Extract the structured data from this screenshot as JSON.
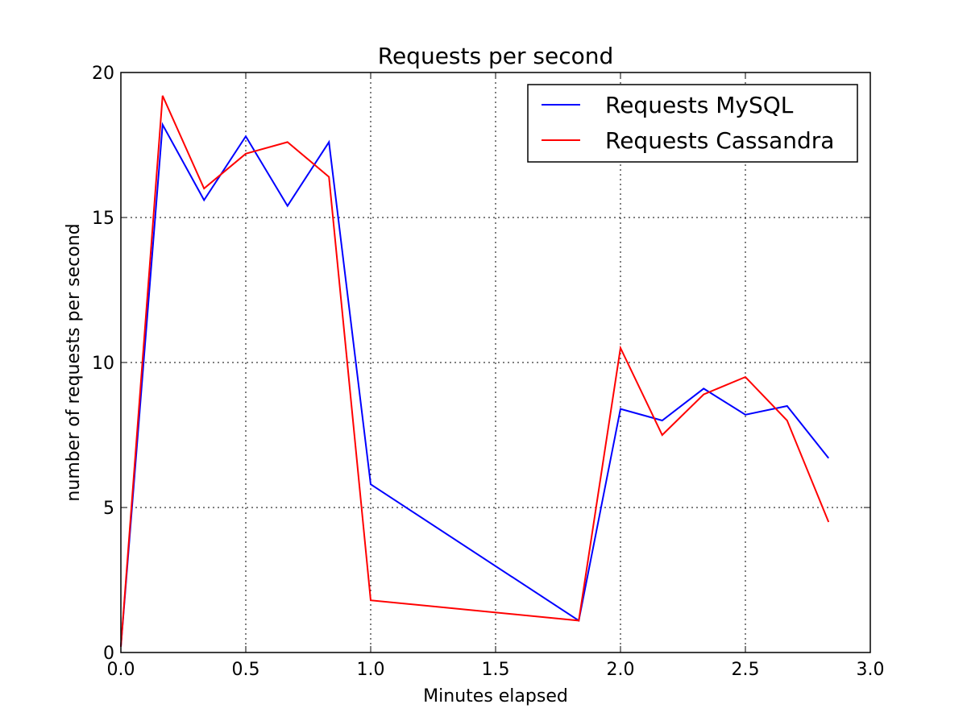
{
  "chart_data": {
    "type": "line",
    "title": "Requests per second",
    "xlabel": "Minutes elapsed",
    "ylabel": "number of requests per second",
    "xlim": [
      0.0,
      3.0
    ],
    "ylim": [
      0,
      20
    ],
    "xticks": [
      0.0,
      0.5,
      1.0,
      1.5,
      2.0,
      2.5,
      3.0
    ],
    "xtick_labels": [
      "0.0",
      "0.5",
      "1.0",
      "1.5",
      "2.0",
      "2.5",
      "3.0"
    ],
    "yticks": [
      0,
      5,
      10,
      15,
      20
    ],
    "ytick_labels": [
      "0",
      "5",
      "10",
      "15",
      "20"
    ],
    "grid": true,
    "legend_position": "top-right",
    "series": [
      {
        "name": "Requests MySQL",
        "color": "#0000ff",
        "x": [
          0.0,
          0.167,
          0.333,
          0.5,
          0.667,
          0.833,
          1.0,
          1.833,
          2.0,
          2.167,
          2.333,
          2.5,
          2.667,
          2.833
        ],
        "y": [
          0.2,
          18.2,
          15.6,
          17.8,
          15.4,
          17.6,
          5.8,
          1.1,
          8.4,
          8.0,
          9.1,
          8.2,
          8.5,
          6.7
        ]
      },
      {
        "name": "Requests Cassandra",
        "color": "#ff0000",
        "x": [
          0.0,
          0.167,
          0.333,
          0.5,
          0.667,
          0.833,
          1.0,
          1.833,
          2.0,
          2.167,
          2.333,
          2.5,
          2.667,
          2.833
        ],
        "y": [
          0.2,
          19.2,
          16.0,
          17.2,
          17.6,
          16.4,
          1.8,
          1.1,
          10.5,
          7.5,
          8.9,
          9.5,
          8.0,
          4.5
        ]
      }
    ]
  }
}
